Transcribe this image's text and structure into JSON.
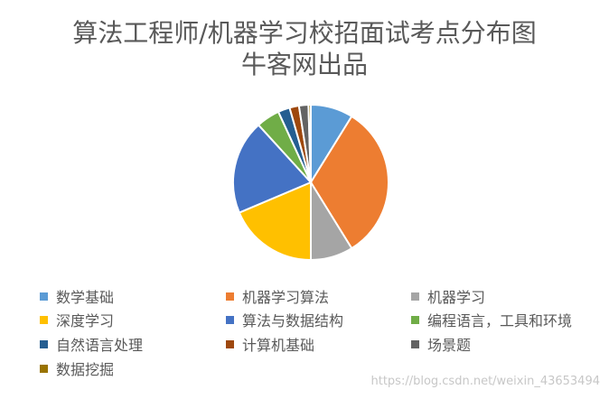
{
  "chart_data": {
    "type": "pie",
    "title_lines": [
      "算法工程师/机器学习校招面试考点分布图",
      "牛客网出品"
    ],
    "categories": [
      "数学基础",
      "机器学习算法",
      "机器学习",
      "深度学习",
      "算法与数据结构",
      "编程语言，工具和环境",
      "自然语言处理",
      "计算机基础",
      "场景题",
      "数据挖掘"
    ],
    "values": [
      9,
      33,
      9,
      19,
      20,
      5,
      2.5,
      2,
      2,
      0.5
    ],
    "colors": [
      "#5B9BD5",
      "#ED7D31",
      "#A5A5A5",
      "#FFC000",
      "#4472C4",
      "#70AD47",
      "#255E91",
      "#9E480E",
      "#636363",
      "#997300"
    ],
    "legend_position": "bottom"
  },
  "watermark": "https://blog.csdn.net/weixin_43653494"
}
